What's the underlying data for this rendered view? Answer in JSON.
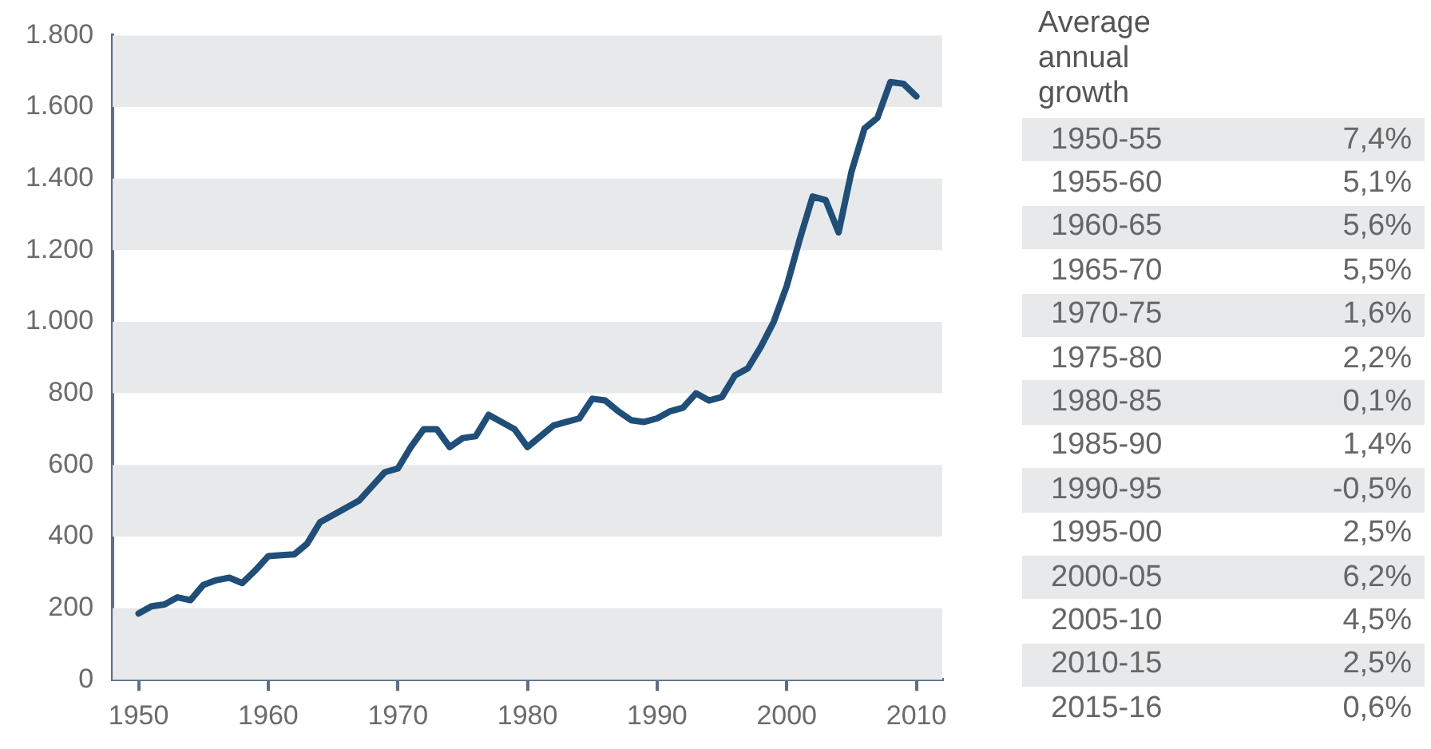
{
  "chart_data": [
    {
      "type": "line",
      "color": "#1f4e79",
      "marker": "none",
      "line_style": "solid",
      "grid": false,
      "legend": false,
      "x": [
        1950,
        1951,
        1952,
        1953,
        1954,
        1955,
        1956,
        1957,
        1958,
        1959,
        1960,
        1961,
        1962,
        1963,
        1964,
        1965,
        1966,
        1967,
        1968,
        1969,
        1970,
        1971,
        1972,
        1973,
        1974,
        1975,
        1976,
        1977,
        1978,
        1979,
        1980,
        1981,
        1982,
        1983,
        1984,
        1985,
        1986,
        1987,
        1988,
        1989,
        1990,
        1991,
        1992,
        1993,
        1994,
        1995,
        1996,
        1997,
        1998,
        1999,
        2000,
        2001,
        2002,
        2003,
        2004,
        2005,
        2006,
        2007,
        2008,
        2009,
        2010
      ],
      "values": [
        185,
        205,
        210,
        230,
        222,
        265,
        278,
        285,
        270,
        305,
        345,
        348,
        350,
        380,
        440,
        460,
        480,
        500,
        540,
        580,
        590,
        650,
        700,
        700,
        650,
        675,
        680,
        740,
        720,
        700,
        650,
        680,
        710,
        720,
        730,
        785,
        780,
        750,
        725,
        720,
        730,
        750,
        760,
        800,
        780,
        790,
        850,
        870,
        930,
        1000,
        1100,
        1230,
        1350,
        1340,
        1250,
        1420,
        1540,
        1570,
        1670,
        1665,
        1630
      ],
      "xlim": [
        1948,
        2012
      ],
      "xticks": [
        1950,
        1960,
        1970,
        1980,
        1990,
        2000,
        2010
      ],
      "ylim": [
        0,
        1800
      ],
      "yticks": [
        0,
        200,
        400,
        600,
        800,
        {
          "value": 1000,
          "label": "1.000"
        },
        {
          "value": 1200,
          "label": "1.200"
        },
        {
          "value": 1400,
          "label": "1.400"
        },
        {
          "value": 1600,
          "label": "1.600"
        },
        {
          "value": 1800,
          "label": "1.800"
        }
      ],
      "bands": [
        {
          "axis": "y",
          "from": 0,
          "to": 200,
          "color": "#e8e9eb"
        },
        {
          "axis": "y",
          "from": 400,
          "to": 600,
          "color": "#e8e9eb"
        },
        {
          "axis": "y",
          "from": 800,
          "to": 1000,
          "color": "#e8e9eb"
        },
        {
          "axis": "y",
          "from": 1200,
          "to": 1400,
          "color": "#e8e9eb"
        },
        {
          "axis": "y",
          "from": 1600,
          "to": 1800,
          "color": "#e8e9eb"
        }
      ]
    },
    {
      "type": "other",
      "title": "Average annual growth",
      "annotations": [
        "1950-55",
        "7,4%",
        "1955-60",
        "5,1%",
        "1960-65",
        "5,6%",
        "1965-70",
        "5,5%",
        "1970-75",
        "1,6%",
        "1975-80",
        "2,2%",
        "1980-85",
        "0,1%",
        "1985-90",
        "1,4%",
        "1990-95",
        "-0,5%",
        "1995-00",
        "2,5%",
        "2000-05",
        "6,2%",
        "2005-10",
        "4,5%",
        "2010-15",
        "2,5%",
        "2015-16",
        "0,6%"
      ]
    }
  ]
}
